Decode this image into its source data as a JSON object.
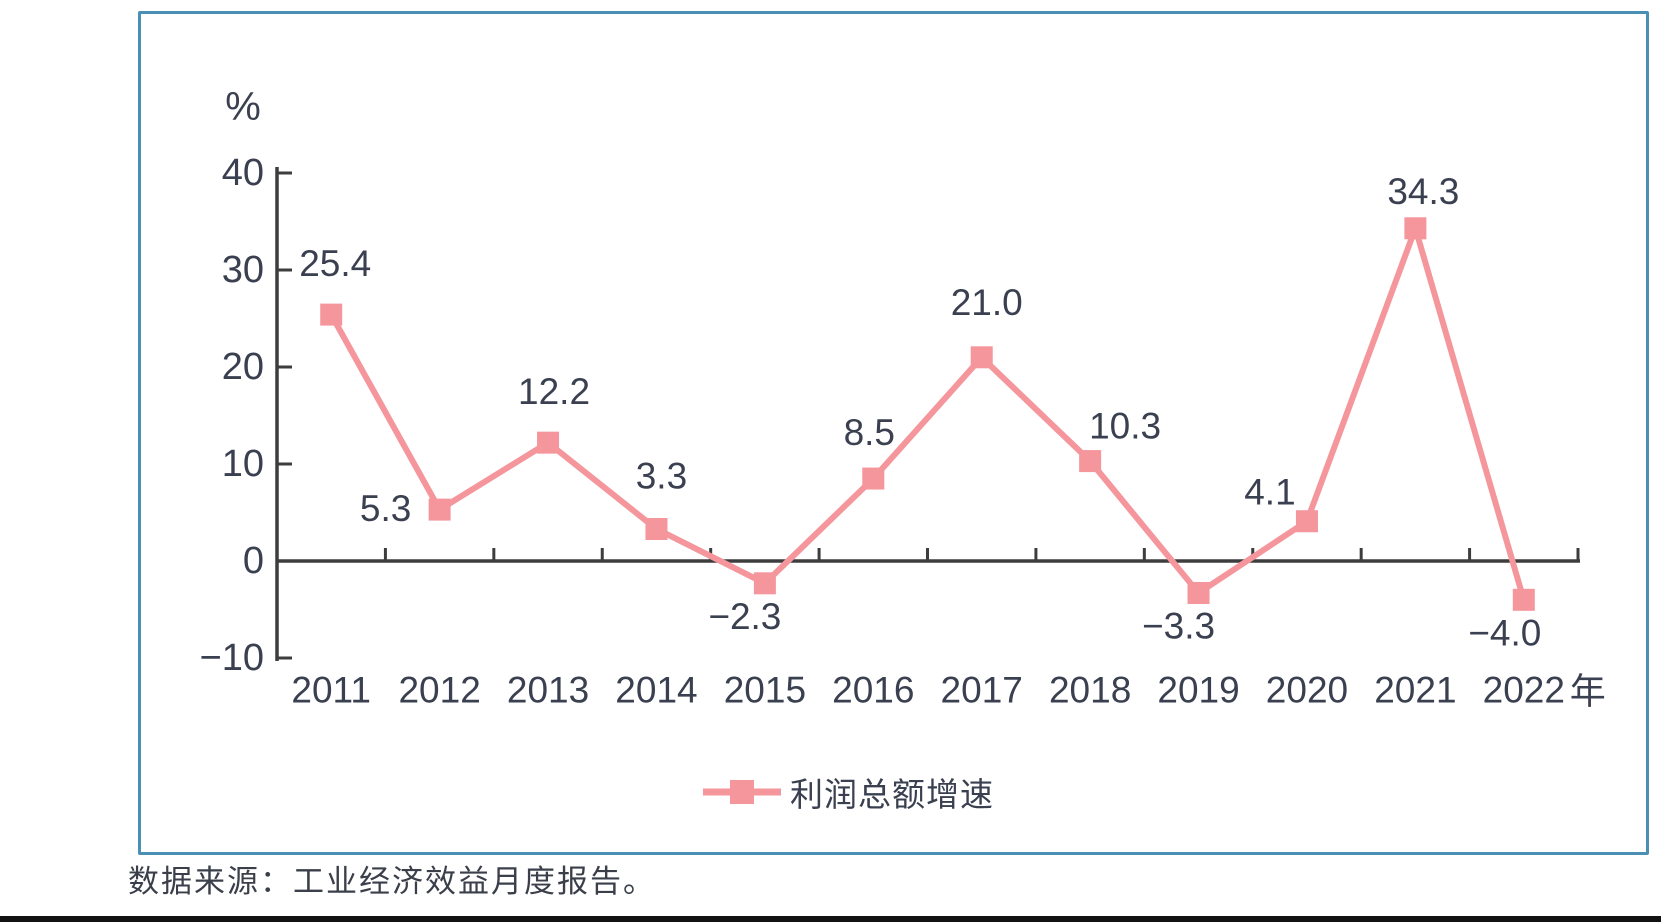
{
  "chart_data": {
    "type": "line",
    "categories": [
      "2011",
      "2012",
      "2013",
      "2014",
      "2015",
      "2016",
      "2017",
      "2018",
      "2019",
      "2020",
      "2021",
      "2022"
    ],
    "series": [
      {
        "name": "利润总额增速",
        "values": [
          25.4,
          5.3,
          12.2,
          3.3,
          -2.3,
          8.5,
          21.0,
          10.3,
          -3.3,
          4.1,
          34.3,
          -4.0
        ]
      }
    ],
    "unit_label": "%",
    "x_axis_suffix": "年",
    "ylim": [
      -10,
      40
    ],
    "yticks": [
      40,
      30,
      20,
      10,
      0,
      -10
    ],
    "grid": false,
    "legend_position": "bottom",
    "data_labels": [
      "25.4",
      "5.3",
      "12.2",
      "3.3",
      "−2.3",
      "8.5",
      "21.0",
      "10.3",
      "−3.3",
      "4.1",
      "34.3",
      "−4.0"
    ]
  },
  "legend": {
    "label": "利润总额增速"
  },
  "source_note": "数据来源：工业经济效益月度报告。",
  "colors": {
    "line": "#f4969b",
    "marker": "#f4969b",
    "axis": "#3d3d3d",
    "text": "#3a4050",
    "panel_background": "#e2eff0",
    "panel_border": "#4a8fb4"
  }
}
